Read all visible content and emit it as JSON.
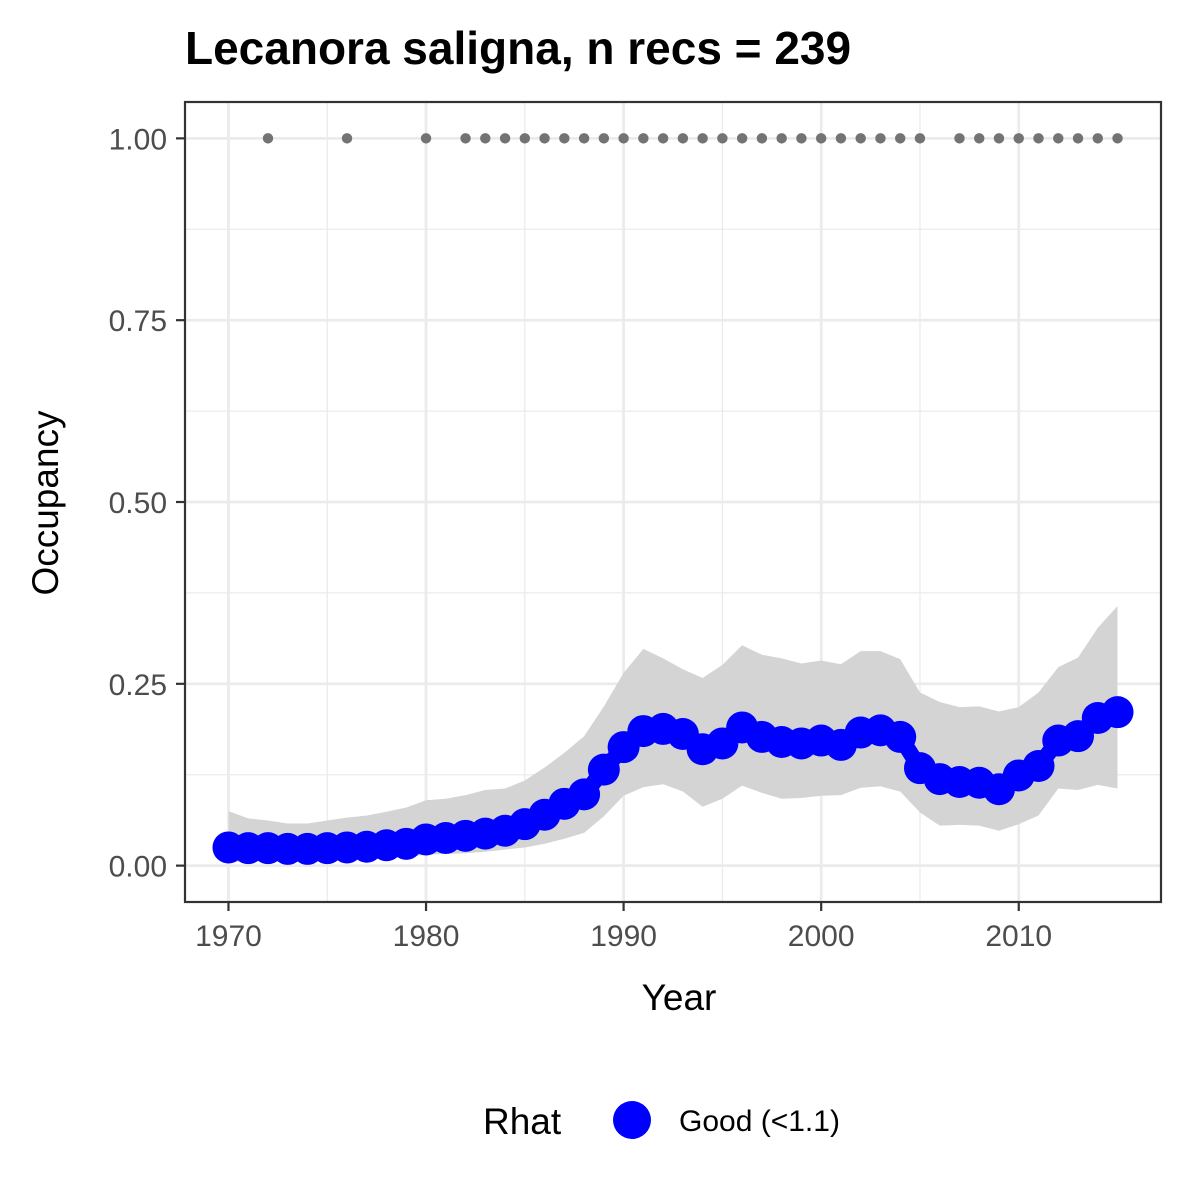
{
  "chart_data": {
    "type": "line",
    "title": "Lecanora saligna, n recs = 239",
    "xlabel": "Year",
    "ylabel": "Occupancy",
    "xlim": [
      1967.8,
      1917.2
    ],
    "ylim": [
      -0.05,
      1.05
    ],
    "x_ticks": [
      1970,
      1980,
      1990,
      2000,
      2010
    ],
    "x_tick_labels": [
      "1970",
      "1980",
      "1990",
      "2000",
      "2010"
    ],
    "y_ticks": [
      0,
      0.25,
      0.5,
      0.75,
      1
    ],
    "y_tick_labels": [
      "0.00",
      "0.25",
      "0.50",
      "0.75",
      "1.00"
    ],
    "grid": true,
    "legend": {
      "title": "Rhat",
      "position": "bottom",
      "entries": [
        {
          "label": "Good (<1.1)",
          "color": "#0000ff"
        }
      ]
    },
    "series": [
      {
        "name": "Good (<1.1)",
        "role": "occupancy_mean",
        "color": "#0000ff",
        "x": [
          1970,
          1971,
          1972,
          1973,
          1974,
          1975,
          1976,
          1977,
          1978,
          1979,
          1980,
          1981,
          1982,
          1983,
          1984,
          1985,
          1986,
          1987,
          1988,
          1989,
          1990,
          1991,
          1992,
          1993,
          1994,
          1995,
          1996,
          1997,
          1998,
          1999,
          2000,
          2001,
          2002,
          2003,
          2004,
          2005,
          2006,
          2007,
          2008,
          2009,
          2010,
          2011,
          2012,
          2013,
          2014,
          2015
        ],
        "values": [
          0.025,
          0.024,
          0.024,
          0.023,
          0.023,
          0.024,
          0.025,
          0.026,
          0.028,
          0.03,
          0.036,
          0.038,
          0.041,
          0.044,
          0.048,
          0.057,
          0.07,
          0.085,
          0.098,
          0.132,
          0.163,
          0.185,
          0.188,
          0.181,
          0.16,
          0.168,
          0.19,
          0.177,
          0.17,
          0.168,
          0.172,
          0.166,
          0.183,
          0.186,
          0.177,
          0.134,
          0.119,
          0.115,
          0.114,
          0.105,
          0.124,
          0.137,
          0.172,
          0.178,
          0.203,
          0.211
        ]
      },
      {
        "name": "",
        "role": "credible_interval_lower",
        "color": "#d4d4d4",
        "x": [
          1970,
          1971,
          1972,
          1973,
          1974,
          1975,
          1976,
          1977,
          1978,
          1979,
          1980,
          1981,
          1982,
          1983,
          1984,
          1985,
          1986,
          1987,
          1988,
          1989,
          1990,
          1991,
          1992,
          1993,
          1994,
          1995,
          1996,
          1997,
          1998,
          1999,
          2000,
          2001,
          2002,
          2003,
          2004,
          2005,
          2006,
          2007,
          2008,
          2009,
          2010,
          2011,
          2012,
          2013,
          2014,
          2015
        ],
        "values": [
          0.005,
          0.006,
          0.006,
          0.006,
          0.006,
          0.007,
          0.008,
          0.008,
          0.01,
          0.012,
          0.015,
          0.016,
          0.017,
          0.019,
          0.022,
          0.025,
          0.03,
          0.037,
          0.045,
          0.068,
          0.096,
          0.108,
          0.112,
          0.102,
          0.081,
          0.092,
          0.11,
          0.1,
          0.092,
          0.093,
          0.096,
          0.097,
          0.107,
          0.109,
          0.102,
          0.073,
          0.055,
          0.056,
          0.055,
          0.048,
          0.057,
          0.069,
          0.106,
          0.104,
          0.111,
          0.106
        ]
      },
      {
        "name": "",
        "role": "credible_interval_upper",
        "color": "#d4d4d4",
        "x": [
          1970,
          1971,
          1972,
          1973,
          1974,
          1975,
          1976,
          1977,
          1978,
          1979,
          1980,
          1981,
          1982,
          1983,
          1984,
          1985,
          1986,
          1987,
          1988,
          1989,
          1990,
          1991,
          1992,
          1993,
          1994,
          1995,
          1996,
          1997,
          1998,
          1999,
          2000,
          2001,
          2002,
          2003,
          2004,
          2005,
          2006,
          2007,
          2008,
          2009,
          2010,
          2011,
          2012,
          2013,
          2014,
          2015
        ],
        "values": [
          0.075,
          0.065,
          0.062,
          0.058,
          0.058,
          0.062,
          0.066,
          0.069,
          0.074,
          0.08,
          0.09,
          0.092,
          0.097,
          0.104,
          0.106,
          0.117,
          0.135,
          0.155,
          0.178,
          0.219,
          0.265,
          0.298,
          0.285,
          0.27,
          0.258,
          0.276,
          0.303,
          0.29,
          0.285,
          0.278,
          0.282,
          0.277,
          0.295,
          0.295,
          0.284,
          0.238,
          0.225,
          0.218,
          0.219,
          0.212,
          0.218,
          0.238,
          0.273,
          0.286,
          0.327,
          0.357
        ]
      },
      {
        "name": "",
        "role": "detection_years",
        "color": "#737373",
        "x": [
          1972,
          1976,
          1980,
          1982,
          1983,
          1984,
          1985,
          1986,
          1987,
          1988,
          1989,
          1990,
          1991,
          1992,
          1993,
          1994,
          1995,
          1996,
          1997,
          1998,
          1999,
          2000,
          2001,
          2002,
          2003,
          2004,
          2005,
          2007,
          2008,
          2009,
          2010,
          2011,
          2012,
          2013,
          2014,
          2015
        ],
        "values": [
          1,
          1,
          1,
          1,
          1,
          1,
          1,
          1,
          1,
          1,
          1,
          1,
          1,
          1,
          1,
          1,
          1,
          1,
          1,
          1,
          1,
          1,
          1,
          1,
          1,
          1,
          1,
          1,
          1,
          1,
          1,
          1,
          1,
          1,
          1,
          1
        ]
      }
    ]
  }
}
